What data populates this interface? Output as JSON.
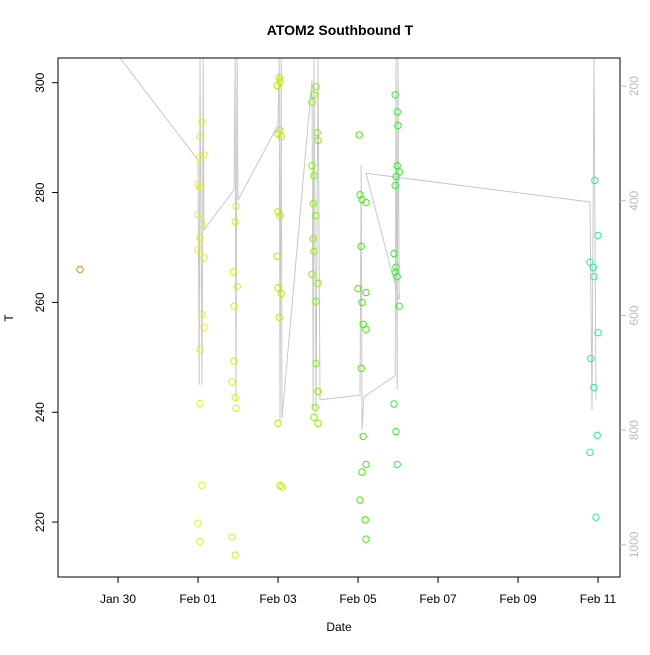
{
  "chart_data": {
    "type": "scatter",
    "title": "ATOM2 Southbound T",
    "xlabel": "Date",
    "ylabel": "T",
    "xlim": [
      28.5,
      42.55
    ],
    "xticks": [
      {
        "value": 30,
        "label": "Jan 30"
      },
      {
        "value": 32,
        "label": "Feb 01"
      },
      {
        "value": 34,
        "label": "Feb 03"
      },
      {
        "value": 36,
        "label": "Feb 05"
      },
      {
        "value": 38,
        "label": "Feb 07"
      },
      {
        "value": 40,
        "label": "Feb 09"
      },
      {
        "value": 42,
        "label": "Feb 11"
      }
    ],
    "ylim": [
      210,
      304.5
    ],
    "yticks": [
      220,
      240,
      260,
      280,
      300
    ],
    "y2lim": [
      1056,
      151
    ],
    "y2ticks": [
      200,
      400,
      600,
      800,
      1000
    ],
    "series": [
      {
        "color": "#f08020",
        "x": [
          29.05
        ],
        "values": [
          266
        ]
      },
      {
        "color": "#e0f020",
        "x": [
          32.1,
          32.05,
          32.15,
          32.05,
          32.0,
          32.05,
          32.0,
          32.1,
          32.05,
          32.0,
          32.15,
          32.1,
          32.15,
          32.05,
          32.05,
          32.1,
          32.0,
          32.05
        ],
        "values": [
          292.9,
          290.2,
          286.9,
          286.4,
          281.5,
          280.9,
          276,
          274.2,
          271.8,
          269.6,
          268.2,
          257.8,
          255.5,
          251.5,
          241.6,
          226.7,
          219.8,
          216.5
        ]
      },
      {
        "color": "#d4f010",
        "x": [
          32.95,
          32.93,
          32.88,
          32.98,
          32.9,
          32.9,
          32.85,
          32.93,
          32.95,
          32.85,
          32.93
        ],
        "values": [
          277.5,
          274.7,
          265.6,
          262.9,
          259.3,
          249.3,
          245.5,
          242.7,
          240.7,
          217.3,
          214
        ]
      },
      {
        "color": "#b0f000",
        "x": [
          34.03,
          34.05,
          33.98,
          34.05,
          34.0,
          34.08,
          34.0,
          34.05,
          33.98,
          34.0,
          34.08,
          34.03,
          34.0,
          34.05,
          34.1
        ],
        "values": [
          300.9,
          300.2,
          299.5,
          291.3,
          290.7,
          290.2,
          276.5,
          275.8,
          268.4,
          262.7,
          261.6,
          257.3,
          238,
          226.7,
          226.4
        ]
      },
      {
        "color": "#88f000",
        "x": [
          34.95,
          34.9,
          34.85,
          34.98,
          35.0,
          34.85,
          34.9,
          34.88,
          34.95,
          34.88,
          34.9,
          34.85,
          35.0,
          34.95,
          34.95,
          35.0,
          34.93,
          34.9,
          35.0
        ],
        "values": [
          299.3,
          297.8,
          296.5,
          290.9,
          289.5,
          284.9,
          283.1,
          278,
          275.8,
          271.6,
          269.3,
          265.1,
          263.5,
          260.2,
          248.9,
          243.8,
          240.9,
          239.1,
          238
        ]
      },
      {
        "color": "#40f000",
        "x": [
          36.03,
          36.05,
          36.1,
          36.2,
          36.08,
          36.0,
          36.2,
          36.1,
          36.13,
          36.2,
          36.08,
          36.13,
          36.2,
          36.1,
          36.05,
          36.18,
          36.2
        ],
        "values": [
          290.5,
          279.6,
          278.7,
          278.2,
          270.2,
          262.5,
          261.8,
          260,
          256,
          255.1,
          248,
          235.6,
          230.5,
          229.1,
          224,
          220.4,
          216.9
        ]
      },
      {
        "color": "#30f030",
        "x": [
          36.93,
          36.98,
          37.0,
          36.98,
          37.03,
          36.95,
          36.93,
          36.9,
          36.95,
          36.93,
          36.98,
          37.03,
          36.9,
          36.95,
          36.98
        ],
        "values": [
          297.8,
          294.7,
          292.2,
          284.9,
          283.8,
          282.9,
          281.3,
          268.9,
          266.4,
          265.5,
          264.7,
          259.3,
          241.5,
          236.5,
          230.5
        ]
      },
      {
        "color": "#20f0a0",
        "x": [
          41.92,
          42.0,
          41.8,
          41.88,
          41.9,
          42.0,
          41.82,
          41.9,
          41.98,
          41.8,
          41.95
        ],
        "values": [
          282.2,
          272.2,
          267.3,
          266.4,
          264.7,
          254.5,
          249.8,
          244.5,
          235.8,
          232.7,
          220.9
        ]
      },
      {
        "type": "line",
        "axis": "y2",
        "color": "#c8c8c8",
        "x": [
          30.05,
          32.0,
          32.03,
          32.05,
          32.1,
          32.13,
          32.15,
          32.9,
          32.93,
          32.95,
          32.98,
          33.0,
          34.0,
          34.03,
          34.05,
          34.08,
          34.1,
          34.85,
          34.88,
          34.9,
          34.95,
          35.0,
          35.05,
          36.05,
          36.08,
          36.1,
          36.15,
          36.93,
          36.95,
          36.98,
          37.0,
          37.03,
          36.2,
          41.8,
          41.85,
          41.9,
          41.95
        ],
        "values": [
          151,
          329,
          721,
          151,
          721,
          151,
          451,
          381,
          151,
          747,
          151,
          399,
          268,
          151,
          782,
          151,
          779,
          190,
          765,
          151,
          765,
          151,
          747,
          739,
          338,
          800,
          742,
          705,
          151,
          730,
          151,
          573,
          352,
          402,
          765,
          151,
          747
        ]
      }
    ]
  }
}
